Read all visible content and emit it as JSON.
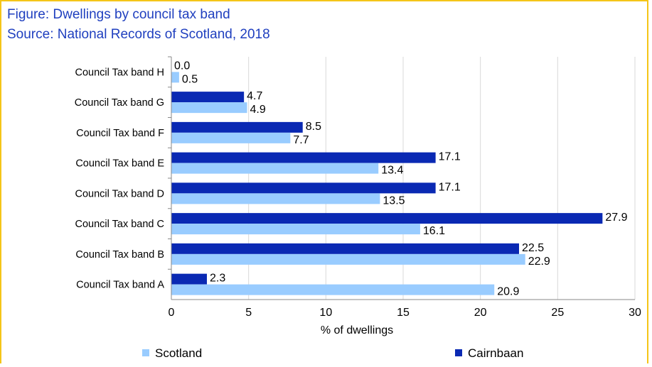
{
  "figure": {
    "title": "Figure: Dwellings by council tax band",
    "source": "Source: National Records of Scotland, 2018"
  },
  "chart_data": {
    "type": "bar",
    "orientation": "horizontal",
    "categories": [
      "Council Tax band H",
      "Council Tax band G",
      "Council Tax band F",
      "Council Tax band E",
      "Council Tax band D",
      "Council Tax band C",
      "Council Tax band B",
      "Council Tax band A"
    ],
    "series": [
      {
        "name": "Cairnbaan",
        "color": "#0a29b3",
        "values": [
          0.0,
          4.7,
          8.5,
          17.1,
          17.1,
          27.9,
          22.5,
          2.3
        ]
      },
      {
        "name": "Scotland",
        "color": "#99ccff",
        "values": [
          0.5,
          4.9,
          7.7,
          13.4,
          13.5,
          16.1,
          22.9,
          20.9
        ]
      }
    ],
    "xlabel": "% of dwellings",
    "ylabel": "",
    "xlim": [
      0,
      30
    ],
    "xticks": [
      0,
      5,
      10,
      15,
      20,
      25,
      30
    ],
    "grid": "vertical",
    "legend_position": "bottom"
  }
}
